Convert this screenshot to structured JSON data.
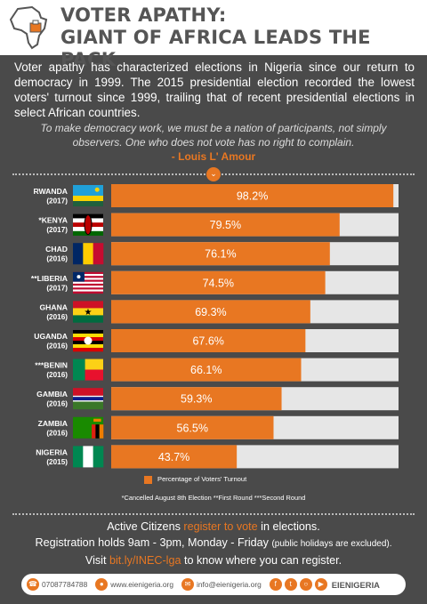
{
  "title_line1": "VOTER APATHY:",
  "title_line2": "GIANT OF AFRICA LEADS THE PACK",
  "intro": "Voter apathy has characterized elections in Nigeria since our return to democracy in 1999. The 2015 presidential election recorded the lowest voters' turnout since 1999, trailing that of recent presidential elections in select African countries.",
  "quote": "To make democracy work, we must be a nation of participants, not simply observers. One who does not vote has no right to complain.",
  "quote_author": "- Louis L' Amour",
  "legend_label": "Percentage of Voters' Turnout",
  "footnote": "*Cancelled August 8th Election  **First Round  ***Second Round",
  "cta": {
    "line1_pre": "Active Citizens ",
    "line1_hl": "register to vote",
    "line1_post": " in elections.",
    "line2_main": "Registration holds 9am - 3pm, Monday - Friday ",
    "line2_small": "(public holidays are excluded).",
    "line3_pre": "Visit ",
    "line3_hl": "bit.ly/INEC-lga",
    "line3_post": " to know where you can register."
  },
  "footer": {
    "phone": "07087784788",
    "website": "www.eienigeria.org",
    "email": "info@eienigeria.org",
    "brand": "EIENIGERIA"
  },
  "colors": {
    "accent": "#e87722",
    "track": "#e6e6e6",
    "background": "#4a4a4a"
  },
  "chart_data": {
    "type": "bar",
    "orientation": "horizontal",
    "categories": [
      {
        "name": "RWANDA",
        "year": "(2017)",
        "flag": "rwanda"
      },
      {
        "name": "*KENYA",
        "year": "(2017)",
        "flag": "kenya"
      },
      {
        "name": "CHAD",
        "year": "(2016)",
        "flag": "chad"
      },
      {
        "name": "**LIBERIA",
        "year": "(2017)",
        "flag": "liberia"
      },
      {
        "name": "GHANA",
        "year": "(2016)",
        "flag": "ghana"
      },
      {
        "name": "UGANDA",
        "year": "(2016)",
        "flag": "uganda"
      },
      {
        "name": "***BENIN",
        "year": "(2016)",
        "flag": "benin"
      },
      {
        "name": "GAMBIA",
        "year": "(2016)",
        "flag": "gambia"
      },
      {
        "name": "ZAMBIA",
        "year": "(2016)",
        "flag": "zambia"
      },
      {
        "name": "NIGERIA",
        "year": "(2015)",
        "flag": "nigeria"
      }
    ],
    "values": [
      98.2,
      79.5,
      76.1,
      74.5,
      69.3,
      67.6,
      66.1,
      59.3,
      56.5,
      43.7
    ],
    "labels": [
      "98.2%",
      "79.5%",
      "76.1%",
      "74.5%",
      "69.3%",
      "67.6%",
      "66.1%",
      "59.3%",
      "56.5%",
      "43.7%"
    ],
    "xlim": [
      0,
      100
    ],
    "series": [
      {
        "name": "Percentage of Voters' Turnout"
      }
    ]
  }
}
